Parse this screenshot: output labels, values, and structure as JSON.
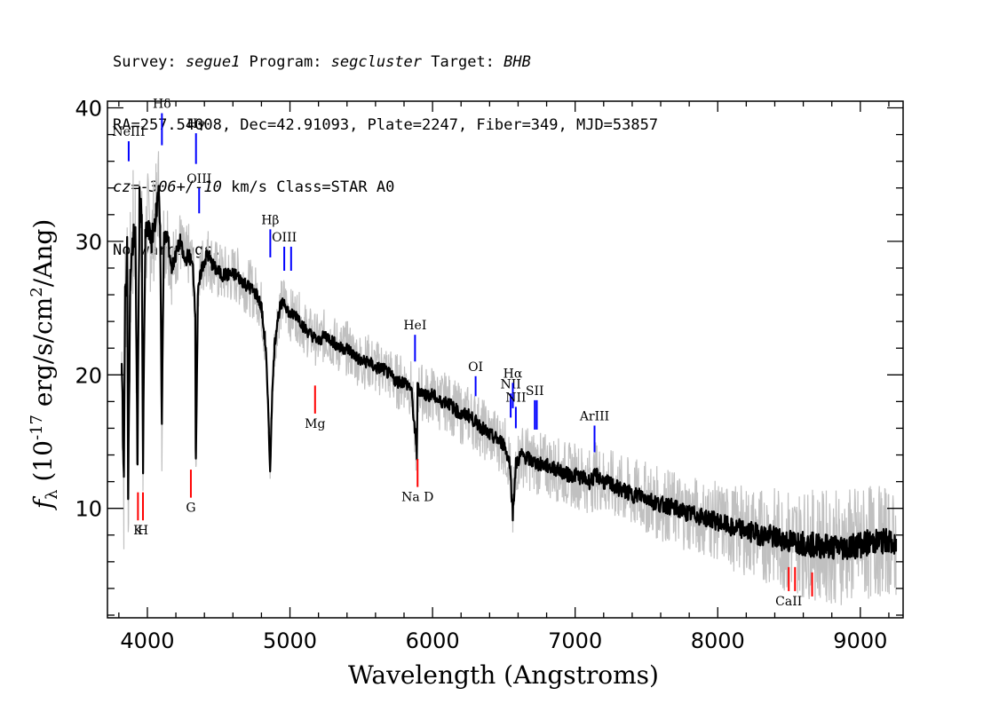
{
  "header": {
    "line1": {
      "survey_label": "Survey: ",
      "survey": "segue1",
      "program_label": " Program: ",
      "program": "segcluster",
      "target_label": " Target: ",
      "target": "BHB"
    },
    "line2": "RA=257.54008, Dec=42.91093, Plate=2247, Fiber=349, MJD=53857",
    "line3": {
      "cz_label": "cz=",
      "cz_value": "-306+/-10",
      "cz_rest": " km/s Class=STAR A0"
    },
    "line4": "No warnings."
  },
  "chart_data": {
    "type": "line",
    "title": "",
    "xlabel": "Wavelength (Angstroms)",
    "ylabel": "f_λ (10^-17 erg/s/cm^2/Ang)",
    "xlim": [
      3720,
      9300
    ],
    "ylim": [
      1.8,
      40.5
    ],
    "x_ticks": [
      4000,
      5000,
      6000,
      7000,
      8000,
      9000
    ],
    "y_ticks": [
      10,
      20,
      30,
      40
    ],
    "grid": false,
    "series": [
      {
        "color": "#000000",
        "role": "spectrum",
        "points": [
          [
            3820,
            21.0
          ],
          [
            3835,
            12
          ],
          [
            3845,
            26
          ],
          [
            3858,
            29
          ],
          [
            3866,
            12
          ],
          [
            3880,
            27
          ],
          [
            3900,
            30
          ],
          [
            3915,
            31
          ],
          [
            3930,
            14
          ],
          [
            3945,
            33
          ],
          [
            3960,
            32
          ],
          [
            3969,
            13
          ],
          [
            3985,
            30
          ],
          [
            4000,
            31
          ],
          [
            4030,
            30
          ],
          [
            4060,
            32
          ],
          [
            4080,
            34
          ],
          [
            4090,
            31
          ],
          [
            4101,
            16
          ],
          [
            4115,
            30
          ],
          [
            4140,
            30.5
          ],
          [
            4170,
            28
          ],
          [
            4200,
            29
          ],
          [
            4230,
            30
          ],
          [
            4260,
            28.5
          ],
          [
            4290,
            29
          ],
          [
            4320,
            28
          ],
          [
            4335,
            25
          ],
          [
            4340,
            14
          ],
          [
            4355,
            26
          ],
          [
            4380,
            28
          ],
          [
            4420,
            29
          ],
          [
            4470,
            28
          ],
          [
            4520,
            27.5
          ],
          [
            4570,
            27.5
          ],
          [
            4620,
            27.5
          ],
          [
            4670,
            27
          ],
          [
            4720,
            26.5
          ],
          [
            4770,
            26
          ],
          [
            4800,
            25
          ],
          [
            4830,
            22
          ],
          [
            4852,
            16
          ],
          [
            4861,
            12.5
          ],
          [
            4870,
            17
          ],
          [
            4890,
            22
          ],
          [
            4910,
            24
          ],
          [
            4930,
            25
          ],
          [
            4960,
            25.5
          ],
          [
            5000,
            24.5
          ],
          [
            5050,
            24.5
          ],
          [
            5100,
            23.5
          ],
          [
            5150,
            23
          ],
          [
            5200,
            22.5
          ],
          [
            5250,
            23
          ],
          [
            5300,
            22.5
          ],
          [
            5350,
            22
          ],
          [
            5400,
            22
          ],
          [
            5450,
            21.5
          ],
          [
            5500,
            21
          ],
          [
            5550,
            21
          ],
          [
            5600,
            20.5
          ],
          [
            5650,
            20.5
          ],
          [
            5700,
            20
          ],
          [
            5750,
            19.5
          ],
          [
            5800,
            19.5
          ],
          [
            5850,
            19
          ],
          [
            5890,
            14
          ],
          [
            5895,
            19
          ],
          [
            5950,
            18.5
          ],
          [
            6000,
            18.5
          ],
          [
            6050,
            18
          ],
          [
            6100,
            18
          ],
          [
            6150,
            17.5
          ],
          [
            6200,
            17
          ],
          [
            6250,
            17
          ],
          [
            6300,
            16.5
          ],
          [
            6350,
            16
          ],
          [
            6400,
            15.5
          ],
          [
            6450,
            15.2
          ],
          [
            6500,
            14.8
          ],
          [
            6540,
            13.5
          ],
          [
            6555,
            11
          ],
          [
            6563,
            9.5
          ],
          [
            6570,
            11
          ],
          [
            6585,
            13.3
          ],
          [
            6620,
            14
          ],
          [
            6660,
            13.8
          ],
          [
            6700,
            13.5
          ],
          [
            6750,
            13.3
          ],
          [
            6800,
            13.2
          ],
          [
            6850,
            13
          ],
          [
            6900,
            12.8
          ],
          [
            6950,
            12.5
          ],
          [
            7000,
            12.5
          ],
          [
            7050,
            12.3
          ],
          [
            7100,
            12
          ],
          [
            7150,
            12.5
          ],
          [
            7200,
            12
          ],
          [
            7250,
            11.8
          ],
          [
            7300,
            11.5
          ],
          [
            7350,
            11.3
          ],
          [
            7400,
            11
          ],
          [
            7450,
            11
          ],
          [
            7500,
            10.8
          ],
          [
            7550,
            10.5
          ],
          [
            7600,
            10.3
          ],
          [
            7650,
            10.2
          ],
          [
            7700,
            10
          ],
          [
            7750,
            9.8
          ],
          [
            7800,
            9.6
          ],
          [
            7850,
            9.5
          ],
          [
            7900,
            9.3
          ],
          [
            7950,
            9.2
          ],
          [
            8000,
            9
          ],
          [
            8050,
            8.8
          ],
          [
            8100,
            8.5
          ],
          [
            8150,
            8.5
          ],
          [
            8200,
            8.3
          ],
          [
            8250,
            8.2
          ],
          [
            8300,
            8
          ],
          [
            8350,
            8
          ],
          [
            8400,
            7.8
          ],
          [
            8450,
            7.7
          ],
          [
            8500,
            7.5
          ],
          [
            8550,
            7.5
          ],
          [
            8600,
            7.4
          ],
          [
            8650,
            7.3
          ],
          [
            8700,
            7.2
          ],
          [
            8750,
            7.2
          ],
          [
            8800,
            7.1
          ],
          [
            8850,
            7.1
          ],
          [
            8900,
            7.1
          ],
          [
            8950,
            7.2
          ],
          [
            9000,
            7.3
          ],
          [
            9050,
            7.4
          ],
          [
            9100,
            7.5
          ],
          [
            9150,
            7.5
          ],
          [
            9200,
            7.6
          ],
          [
            9250,
            7.0
          ]
        ]
      },
      {
        "color": "#c0c0c0",
        "role": "noise envelope",
        "half_width_note": "",
        "points": [
          [
            3850,
            6
          ],
          [
            4200,
            2.5
          ],
          [
            5000,
            2
          ],
          [
            6000,
            2.2
          ],
          [
            7000,
            2.5
          ],
          [
            8000,
            3
          ],
          [
            8500,
            4
          ],
          [
            9000,
            4.5
          ],
          [
            9250,
            4
          ]
        ]
      }
    ],
    "lines": [
      {
        "label": "NeIII",
        "x": 3869,
        "y_top": 37.5,
        "y_bottom": 36.0,
        "color": "#0000ff"
      },
      {
        "label": "Hδ",
        "x": 4102,
        "y_top": 39.6,
        "y_bottom": 37.2,
        "color": "#0000ff"
      },
      {
        "label": "Hγ",
        "x": 4341,
        "y_top": 38.1,
        "y_bottom": 35.8,
        "color": "#0000ff"
      },
      {
        "label": "OIII",
        "x": 4363,
        "y_top": 34.0,
        "y_bottom": 32.1,
        "color": "#0000ff"
      },
      {
        "label": "Hβ",
        "x": 4862,
        "y_top": 30.9,
        "y_bottom": 28.8,
        "color": "#0000ff"
      },
      {
        "label": "OIII",
        "x": 4960,
        "y_top": 29.6,
        "y_bottom": 27.8,
        "color": "#0000ff"
      },
      {
        "label": "",
        "x": 5008,
        "y_top": 29.6,
        "y_bottom": 27.8,
        "color": "#0000ff"
      },
      {
        "label": "HeI",
        "x": 5877,
        "y_top": 23.0,
        "y_bottom": 21.0,
        "color": "#0000ff"
      },
      {
        "label": "OI",
        "x": 6302,
        "y_top": 19.9,
        "y_bottom": 18.4,
        "color": "#0000ff"
      },
      {
        "label": "NII",
        "x": 6548,
        "y_top": 18.6,
        "y_bottom": 16.8,
        "color": "#0000ff"
      },
      {
        "label": "Hα",
        "x": 6563,
        "y_top": 19.4,
        "y_bottom": 17.5,
        "color": "#0000ff"
      },
      {
        "label": "NII",
        "x": 6584,
        "y_top": 17.6,
        "y_bottom": 16.0,
        "color": "#0000ff"
      },
      {
        "label": "SII",
        "x": 6717,
        "y_top": 18.1,
        "y_bottom": 15.9,
        "color": "#0000ff"
      },
      {
        "label": "",
        "x": 6731,
        "y_top": 18.1,
        "y_bottom": 15.9,
        "color": "#0000ff"
      },
      {
        "label": "ArIII",
        "x": 7136,
        "y_top": 16.2,
        "y_bottom": 14.2,
        "color": "#0000ff"
      },
      {
        "label": "K",
        "x": 3934,
        "y_top": 11.2,
        "y_bottom": 9.1,
        "color": "#ff0000"
      },
      {
        "label": "H",
        "x": 3969,
        "y_top": 11.2,
        "y_bottom": 9.1,
        "color": "#ff0000"
      },
      {
        "label": "G",
        "x": 4305,
        "y_top": 12.9,
        "y_bottom": 10.8,
        "color": "#ff0000"
      },
      {
        "label": "Mg",
        "x": 5176,
        "y_top": 19.2,
        "y_bottom": 17.1,
        "color": "#ff0000"
      },
      {
        "label": "Na D",
        "x": 5895,
        "y_top": 13.7,
        "y_bottom": 11.6,
        "color": "#ff0000"
      },
      {
        "label": "CaII",
        "x": 8498,
        "y_top": 5.6,
        "y_bottom": 3.8,
        "color": "#ff0000"
      },
      {
        "label": "",
        "x": 8542,
        "y_top": 5.6,
        "y_bottom": 3.8,
        "color": "#ff0000"
      },
      {
        "label": "",
        "x": 8662,
        "y_top": 5.2,
        "y_bottom": 3.4,
        "color": "#ff0000"
      }
    ]
  }
}
